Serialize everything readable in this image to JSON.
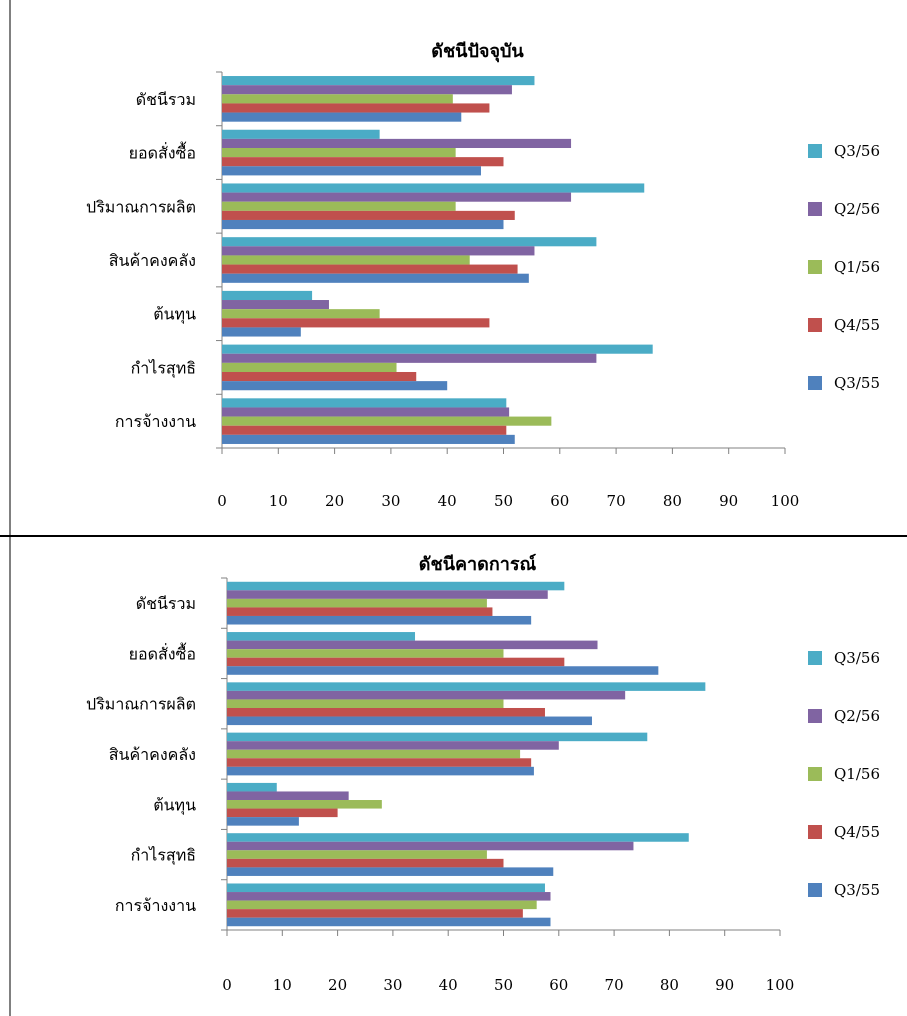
{
  "colors": {
    "Q3/56": "#4BACC6",
    "Q2/56": "#8064A2",
    "Q1/56": "#9BBB59",
    "Q4/55": "#C0504D",
    "Q3/55": "#4F81BD"
  },
  "chart_data": [
    {
      "type": "bar",
      "orientation": "horizontal",
      "title": "ดัชนีปัจจุบัน",
      "categories": [
        "ดัชนีรวม",
        "ยอดสั่งซื้อ",
        "ปริมาณการผลิต",
        "สินค้าคงคลัง",
        "ต้นทุน",
        "กำไรสุทธิ",
        "การจ้างงาน"
      ],
      "series": [
        {
          "name": "Q3/56",
          "values": [
            55.5,
            28,
            75,
            66.5,
            16,
            76.5,
            50.5
          ]
        },
        {
          "name": "Q2/56",
          "values": [
            51.5,
            62,
            62,
            55.5,
            19,
            66.5,
            51
          ]
        },
        {
          "name": "Q1/56",
          "values": [
            41,
            41.5,
            41.5,
            44,
            28,
            31,
            58.5
          ]
        },
        {
          "name": "Q4/55",
          "values": [
            47.5,
            50,
            52,
            52.5,
            47.5,
            34.5,
            50.5
          ]
        },
        {
          "name": "Q3/55",
          "values": [
            42.5,
            46,
            50,
            54.5,
            14,
            40,
            52
          ]
        }
      ],
      "xlim": [
        0,
        100
      ],
      "xticks": [
        "0",
        "10",
        "20",
        "30",
        "40",
        "50",
        "60",
        "70",
        "80",
        "90",
        "100"
      ],
      "legend": "right"
    },
    {
      "type": "bar",
      "orientation": "horizontal",
      "title": "ดัชนีคาดการณ์",
      "categories": [
        "ดัชนีรวม",
        "ยอดสั่งซื้อ",
        "ปริมาณการผลิต",
        "สินค้าคงคลัง",
        "ต้นทุน",
        "กำไรสุทธิ",
        "การจ้างงาน"
      ],
      "series": [
        {
          "name": "Q3/56",
          "values": [
            61,
            34,
            86.5,
            76,
            9,
            83.5,
            57.5
          ]
        },
        {
          "name": "Q2/56",
          "values": [
            58,
            67,
            72,
            60,
            22,
            73.5,
            58.5
          ]
        },
        {
          "name": "Q1/56",
          "values": [
            47,
            50,
            50,
            53,
            28,
            47,
            56
          ]
        },
        {
          "name": "Q4/55",
          "values": [
            48,
            61,
            57.5,
            55,
            20,
            50,
            53.5
          ]
        },
        {
          "name": "Q3/55",
          "values": [
            55,
            78,
            66,
            55.5,
            13,
            59,
            58.5
          ]
        }
      ],
      "xlim": [
        0,
        100
      ],
      "xticks": [
        "0",
        "10",
        "20",
        "30",
        "40",
        "50",
        "60",
        "70",
        "80",
        "90",
        "100"
      ],
      "legend": "right"
    }
  ]
}
